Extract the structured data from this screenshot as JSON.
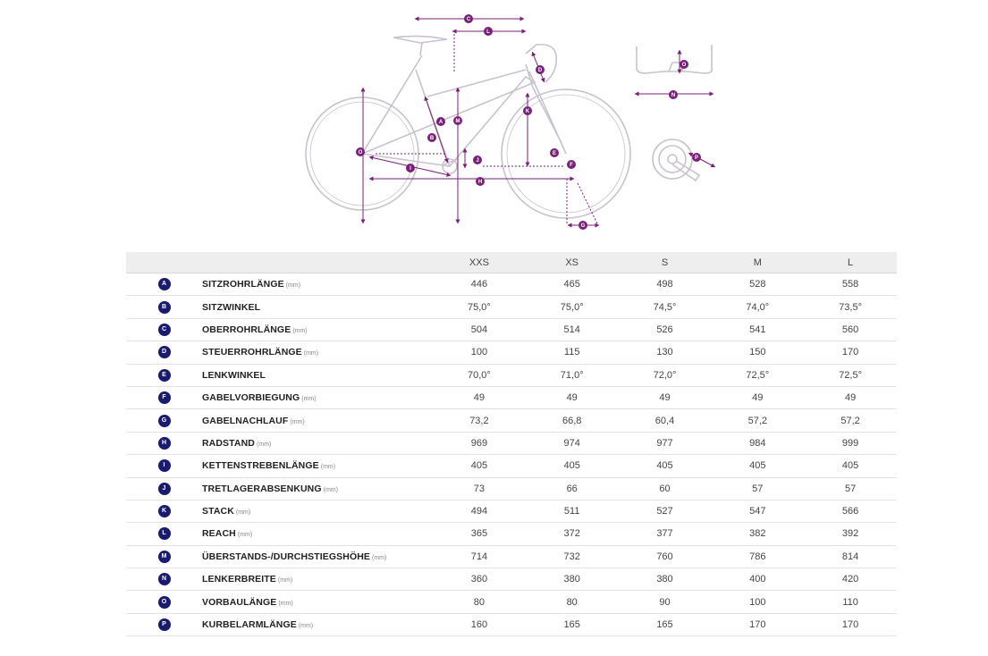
{
  "diagram": {
    "markers": [
      "A",
      "B",
      "C",
      "D",
      "E",
      "F",
      "G",
      "H",
      "I",
      "J",
      "K",
      "L",
      "M",
      "N",
      "O",
      "P"
    ],
    "colors": {
      "frame": "#c8c2cc",
      "dimension": "#7a1f7a",
      "badge": "#1a1a6e"
    }
  },
  "table": {
    "sizes": [
      "XXS",
      "XS",
      "S",
      "M",
      "L"
    ],
    "rows": [
      {
        "badge": "A",
        "label": "SITZROHRLÄNGE",
        "unit": "(mm)",
        "values": [
          "446",
          "465",
          "498",
          "528",
          "558"
        ]
      },
      {
        "badge": "B",
        "label": "SITZWINKEL",
        "unit": "",
        "values": [
          "75,0°",
          "75,0°",
          "74,5°",
          "74,0°",
          "73,5°"
        ]
      },
      {
        "badge": "C",
        "label": "OBERROHRLÄNGE",
        "unit": "(mm)",
        "values": [
          "504",
          "514",
          "526",
          "541",
          "560"
        ]
      },
      {
        "badge": "D",
        "label": "STEUERROHRLÄNGE",
        "unit": "(mm)",
        "values": [
          "100",
          "115",
          "130",
          "150",
          "170"
        ]
      },
      {
        "badge": "E",
        "label": "LENKWINKEL",
        "unit": "",
        "values": [
          "70,0°",
          "71,0°",
          "72,0°",
          "72,5°",
          "72,5°"
        ]
      },
      {
        "badge": "F",
        "label": "GABELVORBIEGUNG",
        "unit": "(mm)",
        "values": [
          "49",
          "49",
          "49",
          "49",
          "49"
        ]
      },
      {
        "badge": "G",
        "label": "GABELNACHLAUF",
        "unit": "(mm)",
        "values": [
          "73,2",
          "66,8",
          "60,4",
          "57,2",
          "57,2"
        ]
      },
      {
        "badge": "H",
        "label": "RADSTAND",
        "unit": "(mm)",
        "values": [
          "969",
          "974",
          "977",
          "984",
          "999"
        ]
      },
      {
        "badge": "I",
        "label": "KETTENSTREBENLÄNGE",
        "unit": "(mm)",
        "values": [
          "405",
          "405",
          "405",
          "405",
          "405"
        ]
      },
      {
        "badge": "J",
        "label": "TRETLAGERABSENKUNG",
        "unit": "(mm)",
        "values": [
          "73",
          "66",
          "60",
          "57",
          "57"
        ]
      },
      {
        "badge": "K",
        "label": "STACK",
        "unit": "(mm)",
        "values": [
          "494",
          "511",
          "527",
          "547",
          "566"
        ]
      },
      {
        "badge": "L",
        "label": "REACH",
        "unit": "(mm)",
        "values": [
          "365",
          "372",
          "377",
          "382",
          "392"
        ]
      },
      {
        "badge": "M",
        "label": "ÜBERSTANDS-/DURCHSTIEGSHÖHE",
        "unit": "(mm)",
        "values": [
          "714",
          "732",
          "760",
          "786",
          "814"
        ]
      },
      {
        "badge": "N",
        "label": "LENKERBREITE",
        "unit": "(mm)",
        "values": [
          "360",
          "380",
          "380",
          "400",
          "420"
        ]
      },
      {
        "badge": "O",
        "label": "VORBAULÄNGE",
        "unit": "(mm)",
        "values": [
          "80",
          "80",
          "90",
          "100",
          "110"
        ]
      },
      {
        "badge": "P",
        "label": "KURBELARMLÄNGE",
        "unit": "(mm)",
        "values": [
          "160",
          "165",
          "165",
          "170",
          "170"
        ]
      }
    ]
  }
}
